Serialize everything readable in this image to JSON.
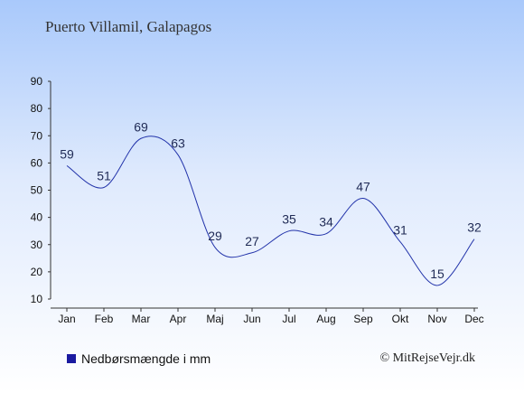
{
  "colors": {
    "line": "#2233aa",
    "legend_swatch": "#1a1aa0",
    "axis": "#333333"
  },
  "title": "Puerto Villamil, Galapagos",
  "legend": {
    "label": "Nedbørsmængde i mm"
  },
  "credit": "© MitRejseVejr.dk",
  "chart_data": {
    "type": "line",
    "title": "Puerto Villamil, Galapagos",
    "xlabel": "",
    "ylabel": "",
    "categories": [
      "Jan",
      "Feb",
      "Mar",
      "Apr",
      "Maj",
      "Jun",
      "Jul",
      "Aug",
      "Sep",
      "Okt",
      "Nov",
      "Dec"
    ],
    "series": [
      {
        "name": "Nedbørsmængde i mm",
        "values": [
          59,
          51,
          69,
          63,
          29,
          27,
          35,
          34,
          47,
          31,
          15,
          32
        ]
      }
    ],
    "ylim": [
      10,
      90
    ],
    "yticks": [
      10,
      20,
      30,
      40,
      50,
      60,
      70,
      80,
      90
    ],
    "grid": false,
    "legend_position": "bottom-left"
  }
}
